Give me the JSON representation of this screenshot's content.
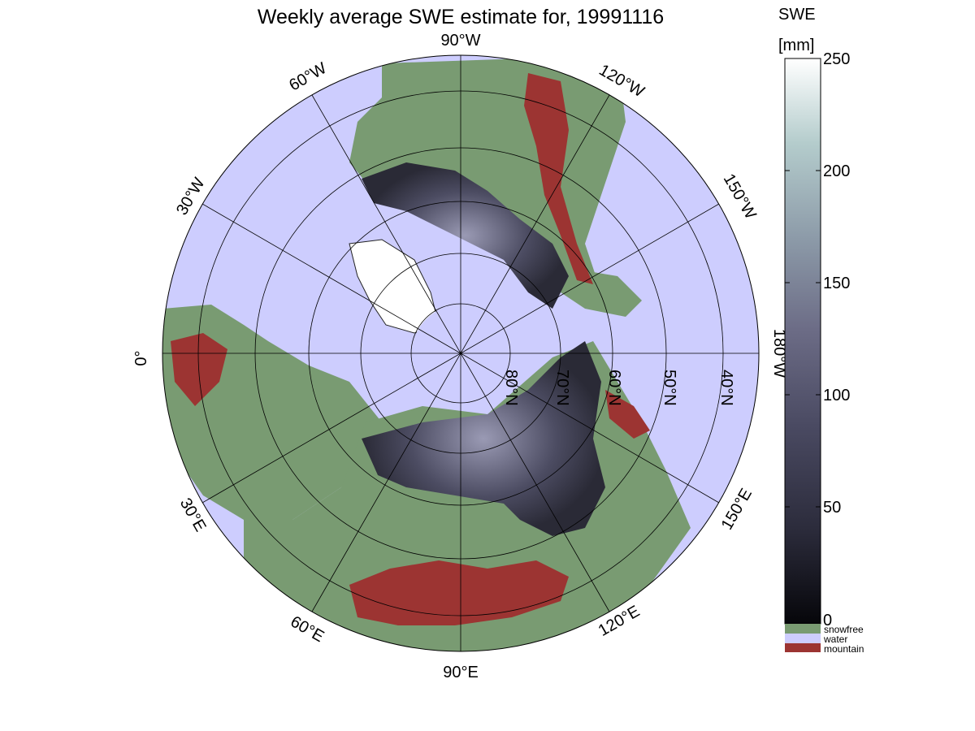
{
  "title": "Weekly average SWE estimate for, 19991116",
  "colorbar": {
    "label_line1": "SWE",
    "label_line2": "[mm]",
    "ticks": [
      "250",
      "200",
      "150",
      "100",
      "50",
      "0"
    ],
    "tick_values": [
      250,
      200,
      150,
      100,
      50,
      0
    ],
    "range": [
      0,
      250
    ],
    "colormap": [
      "#06060a",
      "#2c2c3c",
      "#4a4a62",
      "#6c6c86",
      "#8c9aa8",
      "#b4cccc",
      "#ffffff"
    ]
  },
  "categories": [
    {
      "label": "snowfree",
      "color": "#799b72"
    },
    {
      "label": "water",
      "color": "#cdcdfe"
    },
    {
      "label": "mountain",
      "color": "#9c3432"
    }
  ],
  "map": {
    "projection": "north polar stereographic",
    "ocean_color": "#cdcdfe",
    "land_color": "#799b72",
    "longitude_labels": [
      {
        "text": "90°W",
        "lon": "90W"
      },
      {
        "text": "120°W",
        "lon": "120W"
      },
      {
        "text": "150°W",
        "lon": "150W"
      },
      {
        "text": "180°W",
        "lon": "180W"
      },
      {
        "text": "150°E",
        "lon": "150E"
      },
      {
        "text": "120°E",
        "lon": "120E"
      },
      {
        "text": "90°E",
        "lon": "90E"
      },
      {
        "text": "60°E",
        "lon": "60E"
      },
      {
        "text": "30°E",
        "lon": "30E"
      },
      {
        "text": "0°",
        "lon": "0"
      },
      {
        "text": "30°W",
        "lon": "30W"
      },
      {
        "text": "60°W",
        "lon": "60W"
      }
    ],
    "latitude_labels": [
      {
        "text": "80°N",
        "lat": 80
      },
      {
        "text": "70°N",
        "lat": 70
      },
      {
        "text": "60°N",
        "lat": 60
      },
      {
        "text": "50°N",
        "lat": 50
      },
      {
        "text": "40°N",
        "lat": 40
      }
    ]
  }
}
